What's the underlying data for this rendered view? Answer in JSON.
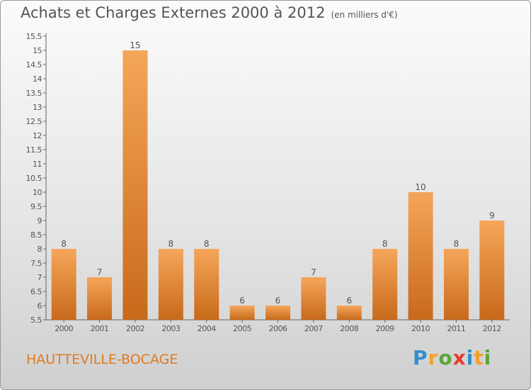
{
  "title": "Achats et Charges Externes 2000 à 2012",
  "subtitle": "(en milliers d'€)",
  "location": "HAUTTEVILLE-BOCAGE",
  "logo": {
    "text": "Proxiti",
    "letters": [
      {
        "ch": "P",
        "color": "#2f8fce"
      },
      {
        "ch": "r",
        "color": "#f0a12c"
      },
      {
        "ch": "o",
        "color": "#5aa53a"
      },
      {
        "ch": "x",
        "color": "#e53b2c"
      },
      {
        "ch": "i",
        "color": "#2f8fce"
      },
      {
        "ch": "t",
        "color": "#f0a12c"
      },
      {
        "ch": "i",
        "color": "#5aa53a"
      }
    ]
  },
  "colors": {
    "bar_light": "#f5a65a",
    "bar_dark": "#c8691a",
    "text": "#555555"
  },
  "chart_data": {
    "type": "bar",
    "categories": [
      "2000",
      "2001",
      "2002",
      "2003",
      "2004",
      "2005",
      "2006",
      "2007",
      "2008",
      "2009",
      "2010",
      "2011",
      "2012"
    ],
    "values": [
      8,
      7,
      15,
      8,
      8,
      6,
      6,
      7,
      6,
      8,
      10,
      8,
      9
    ],
    "ylim": [
      5.5,
      15.5
    ],
    "yticks": [
      5.5,
      6,
      6.5,
      7,
      7.5,
      8,
      8.5,
      9,
      9.5,
      10,
      10.5,
      11,
      11.5,
      12,
      12.5,
      13,
      13.5,
      14,
      14.5,
      15,
      15.5
    ],
    "ytick_labels": [
      "5.5",
      "6",
      "6.5",
      "7",
      "7.5",
      "8",
      "8.5",
      "9",
      "9.5",
      "10",
      "10.5",
      "11",
      "11.5",
      "12",
      "12.5",
      "13",
      "13.5",
      "14",
      "14.5",
      "15",
      "15.5"
    ],
    "data_labels": [
      "8",
      "7",
      "15",
      "8",
      "8",
      "6",
      "6",
      "7",
      "6",
      "8",
      "10",
      "8",
      "9"
    ],
    "grid": false
  }
}
